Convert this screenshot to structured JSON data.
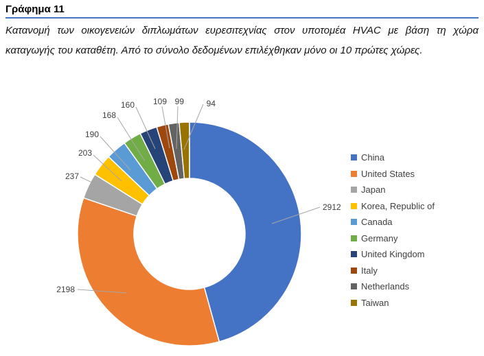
{
  "document": {
    "heading": "Γράφημα 11",
    "rule_color": "#4472C4",
    "caption_line1": "Κατανομή των οικογενειών διπλωμάτων ευρεσιτεχνίας στον υποτομέα HVAC με βάση τη χώρα",
    "caption_line2": "καταγωγής του καταθέτη. Από το σύνολο δεδομένων επιλέχθηκαν μόνο οι 10 πρώτες χώρες."
  },
  "chart_data": {
    "type": "pie",
    "subtype": "donut",
    "title": "",
    "categories": [
      "China",
      "United States",
      "Japan",
      "Korea, Republic of",
      "Canada",
      "Germany",
      "United Kingdom",
      "Italy",
      "Netherlands",
      "Taiwan"
    ],
    "values": [
      2912,
      2198,
      237,
      203,
      190,
      168,
      160,
      109,
      99,
      94
    ],
    "colors": [
      "#4472C4",
      "#ED7D31",
      "#A5A5A5",
      "#FFC000",
      "#5B9BD5",
      "#70AD47",
      "#264478",
      "#9E480E",
      "#636363",
      "#997300"
    ],
    "legend_position": "right",
    "data_labels_shown": true,
    "label_color": "#404040",
    "leader_line_color": "#A6A6A6",
    "start_angle_deg": 0,
    "direction": "clockwise"
  }
}
